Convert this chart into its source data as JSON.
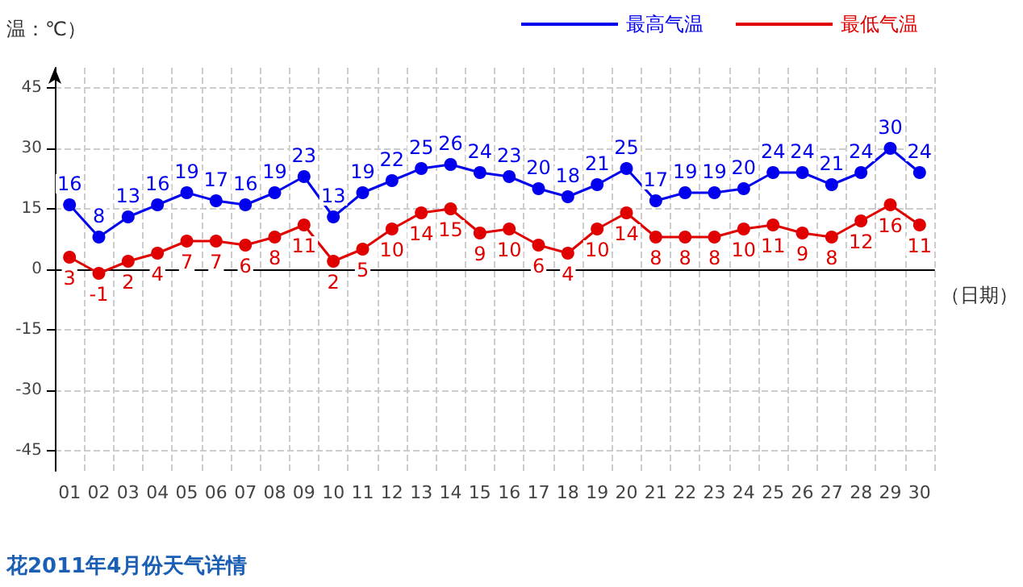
{
  "chart_data": {
    "type": "line",
    "ylabel": "温：℃）",
    "xlabel": "（日期）",
    "categories": [
      "01",
      "02",
      "03",
      "04",
      "05",
      "06",
      "07",
      "08",
      "09",
      "10",
      "11",
      "12",
      "13",
      "14",
      "15",
      "16",
      "17",
      "18",
      "19",
      "20",
      "21",
      "22",
      "23",
      "24",
      "25",
      "26",
      "27",
      "28",
      "29",
      "30"
    ],
    "series": [
      {
        "name": "最高气温",
        "color": "#0000ee",
        "values": [
          16,
          8,
          13,
          16,
          19,
          17,
          16,
          19,
          23,
          13,
          19,
          22,
          25,
          26,
          24,
          23,
          20,
          18,
          21,
          25,
          17,
          19,
          19,
          20,
          24,
          24,
          21,
          24,
          30,
          24
        ]
      },
      {
        "name": "最低气温",
        "color": "#e00000",
        "values": [
          3,
          -1,
          2,
          4,
          7,
          7,
          6,
          8,
          11,
          2,
          5,
          10,
          14,
          15,
          9,
          10,
          6,
          4,
          10,
          14,
          8,
          8,
          8,
          10,
          11,
          9,
          8,
          12,
          16,
          11
        ]
      }
    ],
    "ylim": [
      -50,
      50
    ],
    "yticks": [
      -45,
      -30,
      -15,
      0,
      15,
      30,
      45
    ],
    "grid": true,
    "legend": "top right",
    "marker": "circle",
    "line_style": "solid",
    "data_labels": true,
    "annotations": [
      "花2011年4月份天气详情"
    ]
  }
}
